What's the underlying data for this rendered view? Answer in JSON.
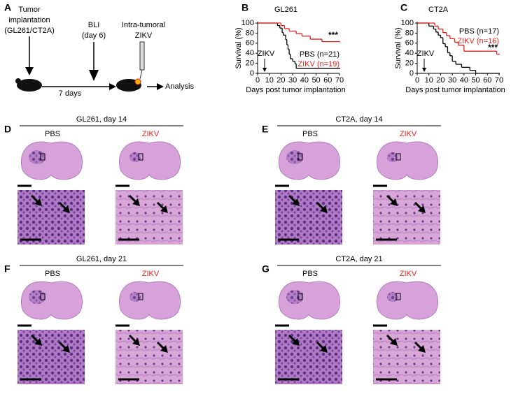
{
  "panel_a": {
    "label": "A",
    "tumor": [
      "Tumor",
      "implantation",
      "(GL261/CT2A)"
    ],
    "bli": [
      "BLI",
      "(day 6)"
    ],
    "intra": [
      "Intra-tumoral",
      "ZIKV"
    ],
    "interval": "7 days",
    "analysis": "Analysis"
  },
  "chart_data": [
    {
      "type": "step",
      "panel_label": "B",
      "title": "GL261",
      "x_label": "Days post tumor implantation",
      "y_label": "Survival (%)",
      "xlim": [
        0,
        70
      ],
      "ylim": [
        0,
        100
      ],
      "xticks": [
        0,
        10,
        20,
        30,
        40,
        50,
        60,
        70
      ],
      "yticks": [
        0,
        20,
        40,
        60,
        80,
        100
      ],
      "legend": "center right",
      "annotation": {
        "text": "ZIKV",
        "x": 6
      },
      "significance": "***",
      "series": [
        {
          "name": "PBS (n=21)",
          "color": "#000000",
          "x": [
            0,
            17,
            19,
            21,
            22,
            24,
            25,
            26,
            27,
            28,
            30,
            32,
            33,
            70
          ],
          "values": [
            100,
            95,
            90,
            81,
            76,
            67,
            57,
            48,
            38,
            29,
            24,
            19,
            10,
            10
          ]
        },
        {
          "name": "ZIKV (n=19)",
          "color": "#e8201c",
          "x": [
            0,
            20,
            23,
            27,
            33,
            38,
            45,
            55,
            70
          ],
          "values": [
            100,
            95,
            89,
            84,
            79,
            74,
            68,
            63,
            63
          ]
        }
      ]
    },
    {
      "type": "step",
      "panel_label": "C",
      "title": "CT2A",
      "x_label": "Days post tumor implantation",
      "y_label": "Survival (%)",
      "xlim": [
        0,
        70
      ],
      "ylim": [
        0,
        100
      ],
      "xticks": [
        0,
        10,
        20,
        30,
        40,
        50,
        60,
        70
      ],
      "yticks": [
        0,
        20,
        40,
        60,
        80,
        100
      ],
      "legend": "upper right",
      "annotation": {
        "text": "ZIKV",
        "x": 6
      },
      "significance": "***",
      "series": [
        {
          "name": "PBS (n=17)",
          "color": "#000000",
          "x": [
            0,
            10,
            14,
            16,
            18,
            20,
            22,
            24,
            26,
            28,
            30,
            33,
            38,
            45,
            50,
            70
          ],
          "values": [
            100,
            94,
            88,
            82,
            76,
            71,
            59,
            53,
            41,
            35,
            24,
            18,
            12,
            6,
            0,
            0
          ]
        },
        {
          "name": "ZIKV (n=16)",
          "color": "#e8201c",
          "x": [
            0,
            15,
            18,
            22,
            25,
            28,
            32,
            35,
            40,
            68,
            70
          ],
          "values": [
            100,
            94,
            88,
            81,
            75,
            69,
            62,
            56,
            44,
            38,
            38
          ]
        }
      ]
    }
  ],
  "panels": [
    {
      "label": "D",
      "title": "GL261, day 14",
      "groups": [
        "PBS",
        "ZIKV"
      ]
    },
    {
      "label": "E",
      "title": "CT2A, day 14",
      "groups": [
        "PBS",
        "ZIKV"
      ]
    },
    {
      "label": "F",
      "title": "GL261, day 21",
      "groups": [
        "PBS",
        "ZIKV"
      ]
    },
    {
      "label": "G",
      "title": "CT2A, day 21",
      "groups": [
        "PBS",
        "ZIKV"
      ]
    }
  ]
}
